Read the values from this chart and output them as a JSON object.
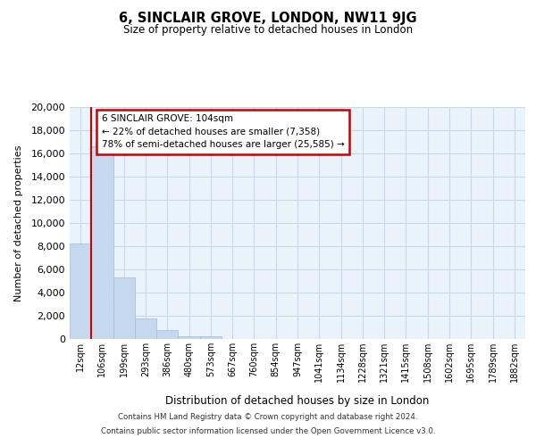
{
  "title": "6, SINCLAIR GROVE, LONDON, NW11 9JG",
  "subtitle": "Size of property relative to detached houses in London",
  "xlabel": "Distribution of detached houses by size in London",
  "ylabel": "Number of detached properties",
  "bar_labels": [
    "12sqm",
    "106sqm",
    "199sqm",
    "293sqm",
    "386sqm",
    "480sqm",
    "573sqm",
    "667sqm",
    "760sqm",
    "854sqm",
    "947sqm",
    "1041sqm",
    "1134sqm",
    "1228sqm",
    "1321sqm",
    "1415sqm",
    "1508sqm",
    "1602sqm",
    "1695sqm",
    "1789sqm",
    "1882sqm"
  ],
  "bar_values": [
    8200,
    16600,
    5300,
    1750,
    750,
    230,
    230,
    0,
    0,
    0,
    0,
    0,
    0,
    0,
    0,
    0,
    0,
    0,
    0,
    0,
    0
  ],
  "bar_color": "#c5d8ed",
  "bar_edge_color": "#a0bcd8",
  "grid_color": "#c8d8e8",
  "background_color": "#eaf2fa",
  "vline_color": "#cc0000",
  "annotation_title": "6 SINCLAIR GROVE: 104sqm",
  "annotation_line1": "← 22% of detached houses are smaller (7,358)",
  "annotation_line2": "78% of semi-detached houses are larger (25,585) →",
  "annotation_box_facecolor": "#ffffff",
  "annotation_box_edgecolor": "#cc0000",
  "ylim": [
    0,
    20000
  ],
  "yticks": [
    0,
    2000,
    4000,
    6000,
    8000,
    10000,
    12000,
    14000,
    16000,
    18000,
    20000
  ],
  "footer_line1": "Contains HM Land Registry data © Crown copyright and database right 2024.",
  "footer_line2": "Contains public sector information licensed under the Open Government Licence v3.0."
}
